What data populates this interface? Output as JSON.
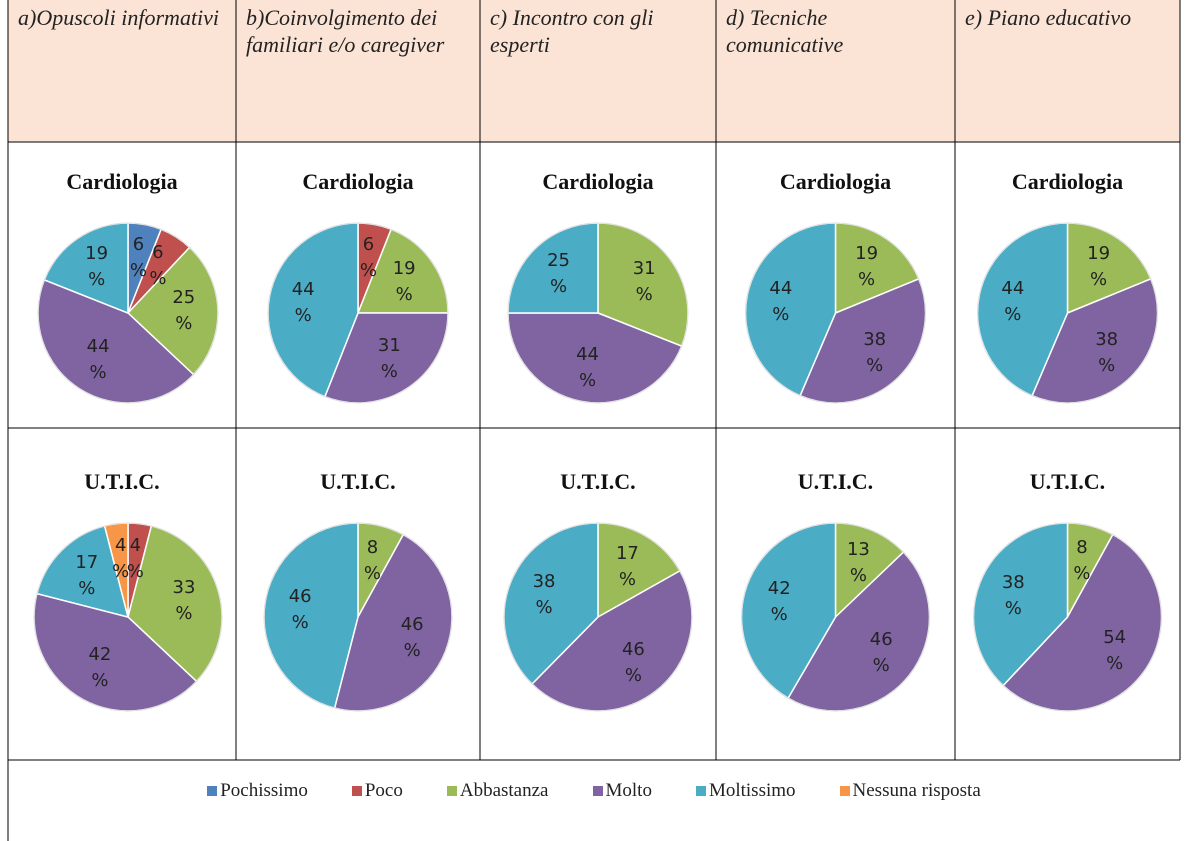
{
  "columns": [
    "a)Opuscoli informativi",
    "b)Coinvolgimento dei familiari e/o caregiver",
    "c) Incontro con gli esperti",
    "d) Tecniche comunicative",
    "e) Piano educativo"
  ],
  "legend": {
    "categories": [
      "Pochissimo",
      "Poco",
      "Abbastanza",
      "Molto",
      "Moltissimo",
      "Nessuna risposta"
    ],
    "colors": [
      "#4f81bd",
      "#c0504d",
      "#9bbb59",
      "#8064a2",
      "#4bacc6",
      "#f79646"
    ]
  },
  "rows": [
    {
      "label": "Cardiologia",
      "charts": [
        {
          "type": "pie",
          "values": [
            6,
            6,
            25,
            44,
            19,
            null
          ],
          "value_labels": [
            "6 %",
            "6 %",
            "25 %",
            "44 %",
            "19 %",
            null
          ]
        },
        {
          "type": "pie",
          "values": [
            null,
            6,
            19,
            31,
            44,
            null
          ],
          "value_labels": [
            null,
            "6 %",
            "19 %",
            "31 %",
            "44 %",
            null
          ]
        },
        {
          "type": "pie",
          "values": [
            null,
            null,
            31,
            44,
            25,
            null
          ],
          "value_labels": [
            null,
            null,
            "31 %",
            "44 %",
            "25 %",
            null
          ]
        },
        {
          "type": "pie",
          "values": [
            null,
            null,
            19,
            38,
            44,
            null
          ],
          "value_labels": [
            null,
            null,
            "19 %",
            "38 %",
            "44 %",
            null
          ]
        },
        {
          "type": "pie",
          "values": [
            null,
            null,
            19,
            38,
            44,
            null
          ],
          "value_labels": [
            null,
            null,
            "19 %",
            "38 %",
            "44 %",
            null
          ]
        }
      ]
    },
    {
      "label": "U.T.I.C.",
      "charts": [
        {
          "type": "pie",
          "values": [
            null,
            4,
            33,
            42,
            17,
            4
          ],
          "value_labels": [
            null,
            "4 %",
            "33 %",
            "42 %",
            "17 %",
            "4 %"
          ]
        },
        {
          "type": "pie",
          "values": [
            null,
            null,
            8,
            46,
            46,
            null
          ],
          "value_labels": [
            null,
            null,
            "8 %",
            "46 %",
            "46 %",
            null
          ]
        },
        {
          "type": "pie",
          "values": [
            null,
            null,
            17,
            46,
            38,
            null
          ],
          "value_labels": [
            null,
            null,
            "17 %",
            "46 %",
            "38 %",
            null
          ]
        },
        {
          "type": "pie",
          "values": [
            null,
            null,
            13,
            46,
            42,
            null
          ],
          "value_labels": [
            null,
            null,
            "13 %",
            "46 %",
            "42 %",
            null
          ]
        },
        {
          "type": "pie",
          "values": [
            null,
            null,
            8,
            54,
            38,
            null
          ],
          "value_labels": [
            null,
            null,
            "8 %",
            "54 %",
            "38 %",
            null
          ]
        }
      ]
    }
  ]
}
